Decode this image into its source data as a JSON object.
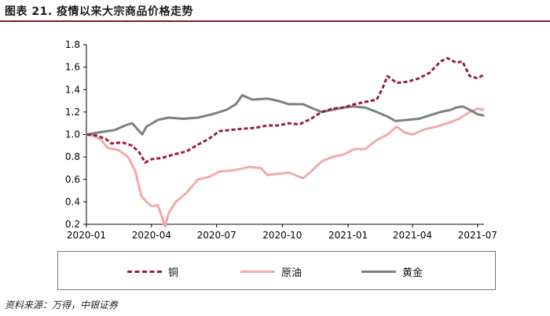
{
  "header": {
    "title": "图表 21. 疫情以来大宗商品价格走势"
  },
  "source": "资料来源：万得，中银证券",
  "colors": {
    "copper": "#9c1b3c",
    "oil": "#f0aaa8",
    "gold": "#7f7f7f",
    "accent_rule": "#8b1a2b"
  },
  "chart_data": {
    "type": "line",
    "title": "",
    "xlabel": "",
    "ylabel": "",
    "ylim": [
      0.2,
      1.8
    ],
    "yticks": [
      "0.2",
      "0.4",
      "0.6",
      "0.8",
      "1.0",
      "1.2",
      "1.4",
      "1.6",
      "1.8"
    ],
    "xlim": [
      "2020-01-01",
      "2021-07-10"
    ],
    "xticks": [
      "2020-01",
      "2020-04",
      "2020-07",
      "2020-10",
      "2021-01",
      "2021-04",
      "2021-07"
    ],
    "legend_position": "bottom",
    "grid": false,
    "series": [
      {
        "name": "铜",
        "color": "#9c1b3c",
        "style": "dashed",
        "x": [
          "2020-01-02",
          "2020-01-15",
          "2020-01-28",
          "2020-02-05",
          "2020-02-20",
          "2020-03-05",
          "2020-03-15",
          "2020-03-23",
          "2020-04-01",
          "2020-04-15",
          "2020-05-01",
          "2020-05-20",
          "2020-06-05",
          "2020-06-20",
          "2020-07-05",
          "2020-07-20",
          "2020-08-05",
          "2020-08-25",
          "2020-09-10",
          "2020-09-25",
          "2020-10-10",
          "2020-10-25",
          "2020-11-10",
          "2020-11-25",
          "2020-12-10",
          "2020-12-25",
          "2021-01-10",
          "2021-01-25",
          "2021-02-10",
          "2021-02-18",
          "2021-02-25",
          "2021-03-10",
          "2021-03-25",
          "2021-04-10",
          "2021-04-25",
          "2021-05-10",
          "2021-05-20",
          "2021-06-01",
          "2021-06-10",
          "2021-06-20",
          "2021-07-01",
          "2021-07-09"
        ],
        "y": [
          1.0,
          0.99,
          0.96,
          0.92,
          0.93,
          0.9,
          0.84,
          0.75,
          0.78,
          0.79,
          0.82,
          0.85,
          0.91,
          0.96,
          1.03,
          1.04,
          1.05,
          1.06,
          1.08,
          1.08,
          1.1,
          1.09,
          1.14,
          1.2,
          1.23,
          1.24,
          1.27,
          1.29,
          1.31,
          1.41,
          1.52,
          1.46,
          1.47,
          1.5,
          1.55,
          1.65,
          1.68,
          1.64,
          1.65,
          1.52,
          1.5,
          1.53
        ]
      },
      {
        "name": "原油",
        "color": "#f0aaa8",
        "style": "solid",
        "x": [
          "2020-01-02",
          "2020-01-10",
          "2020-01-20",
          "2020-01-31",
          "2020-02-15",
          "2020-02-28",
          "2020-03-09",
          "2020-03-18",
          "2020-03-25",
          "2020-04-01",
          "2020-04-10",
          "2020-04-20",
          "2020-04-25",
          "2020-05-05",
          "2020-05-20",
          "2020-06-05",
          "2020-06-20",
          "2020-07-05",
          "2020-07-25",
          "2020-08-15",
          "2020-09-01",
          "2020-09-10",
          "2020-09-25",
          "2020-10-10",
          "2020-10-30",
          "2020-11-10",
          "2020-11-25",
          "2020-12-10",
          "2020-12-25",
          "2021-01-10",
          "2021-01-25",
          "2021-02-10",
          "2021-02-25",
          "2021-03-10",
          "2021-03-20",
          "2021-04-01",
          "2021-04-20",
          "2021-05-05",
          "2021-05-20",
          "2021-06-05",
          "2021-06-20",
          "2021-07-01",
          "2021-07-09"
        ],
        "y": [
          1.0,
          0.99,
          0.96,
          0.88,
          0.86,
          0.8,
          0.68,
          0.45,
          0.4,
          0.36,
          0.37,
          0.18,
          0.3,
          0.4,
          0.48,
          0.6,
          0.62,
          0.67,
          0.68,
          0.71,
          0.7,
          0.64,
          0.65,
          0.66,
          0.61,
          0.67,
          0.76,
          0.8,
          0.82,
          0.87,
          0.87,
          0.95,
          1.0,
          1.07,
          1.02,
          1.0,
          1.05,
          1.07,
          1.1,
          1.14,
          1.2,
          1.23,
          1.22
        ]
      },
      {
        "name": "黄金",
        "color": "#7f7f7f",
        "style": "solid",
        "x": [
          "2020-01-02",
          "2020-01-20",
          "2020-02-10",
          "2020-02-24",
          "2020-03-05",
          "2020-03-19",
          "2020-03-25",
          "2020-04-10",
          "2020-04-25",
          "2020-05-15",
          "2020-06-05",
          "2020-06-25",
          "2020-07-15",
          "2020-07-28",
          "2020-08-06",
          "2020-08-20",
          "2020-09-10",
          "2020-09-25",
          "2020-10-10",
          "2020-10-30",
          "2020-11-10",
          "2020-11-25",
          "2020-12-10",
          "2020-12-25",
          "2021-01-08",
          "2021-01-25",
          "2021-02-10",
          "2021-02-25",
          "2021-03-08",
          "2021-03-25",
          "2021-04-10",
          "2021-04-25",
          "2021-05-10",
          "2021-05-25",
          "2021-06-01",
          "2021-06-10",
          "2021-06-20",
          "2021-07-01",
          "2021-07-09"
        ],
        "y": [
          1.0,
          1.02,
          1.04,
          1.08,
          1.1,
          1.0,
          1.07,
          1.13,
          1.15,
          1.14,
          1.15,
          1.18,
          1.22,
          1.27,
          1.35,
          1.31,
          1.32,
          1.3,
          1.27,
          1.27,
          1.24,
          1.2,
          1.22,
          1.24,
          1.25,
          1.24,
          1.2,
          1.16,
          1.12,
          1.13,
          1.14,
          1.17,
          1.2,
          1.22,
          1.24,
          1.25,
          1.22,
          1.18,
          1.17
        ]
      }
    ]
  }
}
